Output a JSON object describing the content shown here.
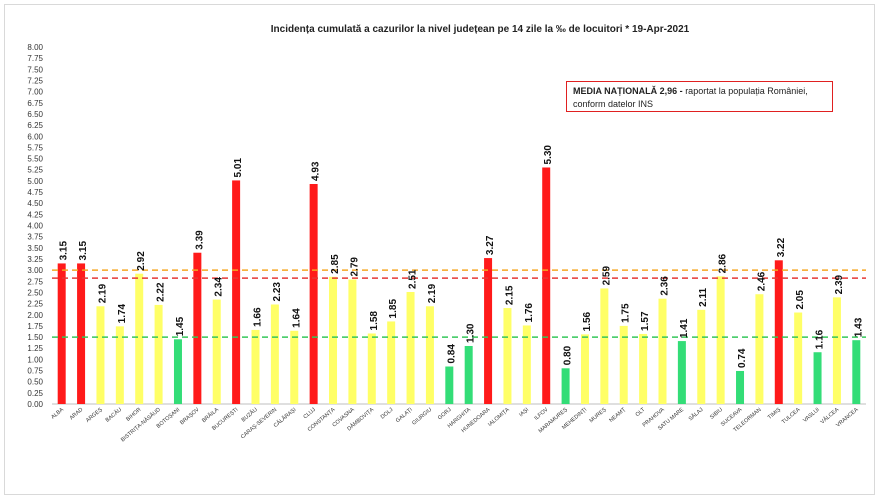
{
  "chart_data": {
    "type": "bar",
    "title": "Incidența cumulată a cazurilor la nivel județean pe 14 zile la ‰ de locuitori *",
    "date": "19-Apr-2021",
    "ylim": [
      0,
      8
    ],
    "yticks": [
      "0.00",
      "0.25",
      "0.50",
      "0.75",
      "1.00",
      "1.25",
      "1.50",
      "1.75",
      "2.00",
      "2.25",
      "2.50",
      "2.75",
      "3.00",
      "3.25",
      "3.50",
      "3.75",
      "4.00",
      "4.25",
      "4.50",
      "4.75",
      "5.00",
      "5.25",
      "5.50",
      "5.75",
      "6.00",
      "6.25",
      "6.50",
      "6.75",
      "7.00",
      "7.25",
      "7.50",
      "7.75",
      "8.00"
    ],
    "grid": false,
    "categories": [
      "ALBA",
      "ARAD",
      "ARGEȘ",
      "BACĂU",
      "BIHOR",
      "BISTRIȚA-NĂSĂUD",
      "BOTOȘANI",
      "BRAȘOV",
      "BRĂILA",
      "BUCUREȘTI",
      "BUZĂU",
      "CARAȘ-SEVERIN",
      "CĂLĂRAȘI",
      "CLUJ",
      "CONSTANȚA",
      "COVASNA",
      "DÂMBOVIȚA",
      "DOLJ",
      "GALAȚI",
      "GIURGIU",
      "GORJ",
      "HARGHITA",
      "HUNEDOARA",
      "IALOMIȚA",
      "IAȘI",
      "ILFOV",
      "MARAMUREȘ",
      "MEHEDINȚI",
      "MUREȘ",
      "NEAMȚ",
      "OLT",
      "PRAHOVA",
      "SATU MARE",
      "SĂLAJ",
      "SIBIU",
      "SUCEAVA",
      "TELEORMAN",
      "TIMIȘ",
      "TULCEA",
      "VASLUI",
      "VÂLCEA",
      "VRANCEA"
    ],
    "values": [
      3.15,
      3.15,
      2.19,
      1.74,
      2.92,
      2.22,
      1.45,
      3.39,
      2.34,
      5.01,
      1.66,
      2.23,
      1.64,
      4.93,
      2.85,
      2.79,
      1.58,
      1.85,
      2.51,
      2.19,
      0.84,
      1.3,
      3.27,
      2.15,
      1.76,
      5.3,
      0.8,
      1.56,
      2.59,
      1.75,
      1.57,
      2.36,
      1.41,
      2.11,
      2.86,
      0.74,
      2.46,
      3.22,
      2.05,
      1.16,
      2.39,
      1.43
    ],
    "labels": [
      "3.15",
      "3.15",
      "2.19",
      "1.74",
      "2.92",
      "2.22",
      "1.45",
      "3.39",
      "2.34",
      "5.01",
      "1.66",
      "2.23",
      "1.64",
      "4.93",
      "2.85",
      "2.79",
      "1.58",
      "1.85",
      "2.51",
      "2.19",
      "0.84",
      "1.30",
      "3.27",
      "2.15",
      "1.76",
      "5.30",
      "0.80",
      "1.56",
      "2.59",
      "1.75",
      "1.57",
      "2.36",
      "1.41",
      "2.11",
      "2.86",
      "0.74",
      "2.46",
      "3.22",
      "2.05",
      "1.16",
      "2.39",
      "1.43"
    ],
    "colors": {
      "red": "#ff1a1a",
      "yellow": "#ffff66",
      "green": "#33dd77"
    },
    "thresholds": [
      {
        "value": 3.0,
        "color": "#f5a623",
        "style": "dashed"
      },
      {
        "value": 2.82,
        "color": "#e53935",
        "style": "dashed"
      },
      {
        "value": 1.5,
        "color": "#34c759",
        "style": "dashed"
      }
    ]
  },
  "note": {
    "bold_text": "MEDIA NAȚIONALĂ 2,96 -",
    "text": " raportat la populația României, conform datelor INS"
  }
}
